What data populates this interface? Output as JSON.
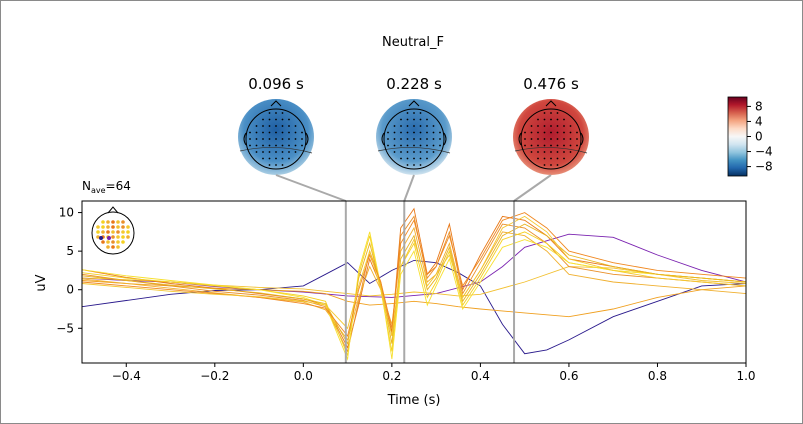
{
  "figure": {
    "title": "Neutral_F",
    "nave_label": "N",
    "nave_sub": "ave",
    "nave_value": "=64"
  },
  "chart_data": {
    "type": "line",
    "xlabel": "Time (s)",
    "ylabel": "uV",
    "xlim": [
      -0.5,
      1.0
    ],
    "ylim": [
      -9.5,
      11.5
    ],
    "xticks": [
      -0.4,
      -0.2,
      0.0,
      0.2,
      0.4,
      0.6,
      0.8,
      1.0
    ],
    "xtick_labels": [
      "−0.4",
      "−0.2",
      "0.0",
      "0.2",
      "0.4",
      "0.6",
      "0.8",
      "1.0"
    ],
    "yticks": [
      -5,
      0,
      5,
      10
    ],
    "ytick_labels": [
      "−5",
      "0",
      "5",
      "10"
    ],
    "grid": false,
    "markers": [
      0.096,
      0.228,
      0.476
    ],
    "marker_color": "#a9a9a9",
    "series": [
      {
        "color": "#2a1a8c",
        "x": [
          -0.5,
          -0.4,
          -0.3,
          -0.2,
          -0.1,
          0.0,
          0.05,
          0.1,
          0.15,
          0.2,
          0.25,
          0.3,
          0.35,
          0.4,
          0.45,
          0.5,
          0.55,
          0.6,
          0.7,
          0.8,
          0.9,
          1.0
        ],
        "y": [
          -2.2,
          -1.4,
          -0.6,
          -0.1,
          0.0,
          0.5,
          2.0,
          3.5,
          0.8,
          2.5,
          3.8,
          3.5,
          2.2,
          0.5,
          -4.5,
          -8.3,
          -7.8,
          -6.5,
          -3.5,
          -1.5,
          0.5,
          0.8
        ]
      },
      {
        "color": "#7a22b0",
        "x": [
          -0.5,
          -0.4,
          -0.3,
          -0.2,
          -0.1,
          0.0,
          0.1,
          0.2,
          0.3,
          0.4,
          0.45,
          0.5,
          0.6,
          0.7,
          0.8,
          0.9,
          1.0
        ],
        "y": [
          1.5,
          1.2,
          1.0,
          0.4,
          0.0,
          -0.3,
          -0.8,
          -1.0,
          -0.5,
          1.0,
          3.0,
          5.5,
          7.2,
          6.8,
          4.5,
          2.5,
          1.0
        ]
      },
      {
        "color": "#f0a020",
        "x": [
          -0.5,
          -0.4,
          -0.3,
          -0.2,
          -0.1,
          0.0,
          0.05,
          0.1,
          0.15,
          0.2,
          0.25,
          0.3,
          0.35,
          0.4,
          0.5,
          0.6,
          0.7,
          0.8,
          0.9,
          1.0
        ],
        "y": [
          1.2,
          0.8,
          0.5,
          0.2,
          0.0,
          -0.2,
          -0.5,
          -1.5,
          -2.0,
          -1.8,
          -1.5,
          -1.8,
          -2.2,
          -2.5,
          -3.0,
          -3.5,
          -2.5,
          -1.0,
          0.0,
          0.5
        ]
      },
      {
        "color": "#f2c030",
        "x": [
          -0.5,
          -0.4,
          -0.3,
          -0.2,
          -0.1,
          0.0,
          0.05,
          0.1,
          0.15,
          0.2,
          0.25,
          0.3,
          0.35,
          0.4,
          0.5,
          0.6,
          0.7,
          0.8,
          0.9,
          1.0
        ],
        "y": [
          1.5,
          1.3,
          1.0,
          0.6,
          0.3,
          0.1,
          -0.2,
          -0.5,
          -0.8,
          -0.6,
          -0.3,
          -0.5,
          -0.8,
          -0.6,
          1.0,
          3.0,
          2.8,
          2.0,
          1.2,
          0.8
        ]
      },
      {
        "color": "#e87818",
        "x": [
          -0.5,
          -0.4,
          -0.3,
          -0.2,
          -0.1,
          0.0,
          0.05,
          0.1,
          0.125,
          0.15,
          0.175,
          0.2,
          0.22,
          0.25,
          0.28,
          0.3,
          0.33,
          0.36,
          0.4,
          0.45,
          0.5,
          0.55,
          0.6,
          0.7,
          0.8,
          0.9,
          1.0
        ],
        "y": [
          2.6,
          1.6,
          0.8,
          0.2,
          -0.5,
          -1.2,
          -2.0,
          -7.5,
          -2.0,
          4.0,
          0.5,
          -5.5,
          8.0,
          10.5,
          2.0,
          3.5,
          8.5,
          0.0,
          4.5,
          9.5,
          9.0,
          7.0,
          4.0,
          3.0,
          2.0,
          1.5,
          1.0
        ]
      },
      {
        "color": "#e9902a",
        "x": [
          -0.5,
          -0.4,
          -0.3,
          -0.2,
          -0.1,
          0.0,
          0.05,
          0.1,
          0.125,
          0.15,
          0.175,
          0.2,
          0.22,
          0.25,
          0.28,
          0.3,
          0.33,
          0.36,
          0.4,
          0.45,
          0.5,
          0.55,
          0.6,
          0.7,
          0.8,
          0.9,
          1.0
        ],
        "y": [
          2.0,
          1.2,
          0.5,
          -0.2,
          -0.7,
          -1.4,
          -2.2,
          -8.0,
          -1.5,
          5.0,
          1.0,
          -6.0,
          7.0,
          9.5,
          1.5,
          3.0,
          7.5,
          -0.5,
          3.5,
          8.5,
          8.0,
          6.0,
          3.0,
          2.0,
          1.5,
          1.0,
          0.5
        ]
      },
      {
        "color": "#f0b030",
        "x": [
          -0.5,
          -0.4,
          -0.3,
          -0.2,
          -0.1,
          0.0,
          0.05,
          0.1,
          0.125,
          0.15,
          0.175,
          0.2,
          0.22,
          0.25,
          0.28,
          0.3,
          0.33,
          0.36,
          0.4,
          0.45,
          0.5,
          0.55,
          0.6,
          0.7,
          0.8,
          0.9,
          1.0
        ],
        "y": [
          1.4,
          0.8,
          0.2,
          -0.4,
          -1.0,
          -1.6,
          -2.6,
          -6.5,
          -1.0,
          3.0,
          0.0,
          -4.5,
          5.0,
          8.0,
          1.0,
          2.0,
          6.0,
          -1.0,
          2.5,
          7.5,
          7.0,
          5.0,
          2.0,
          1.0,
          0.5,
          0.0,
          -0.5
        ]
      },
      {
        "color": "#f5d020",
        "x": [
          -0.5,
          -0.4,
          -0.3,
          -0.2,
          -0.1,
          0.0,
          0.05,
          0.1,
          0.125,
          0.15,
          0.175,
          0.2,
          0.22,
          0.25,
          0.28,
          0.3,
          0.33,
          0.36,
          0.4,
          0.45,
          0.5,
          0.55,
          0.6,
          0.7,
          0.8,
          0.9,
          1.0
        ],
        "y": [
          2.2,
          1.5,
          1.0,
          0.5,
          0.0,
          -0.8,
          -1.5,
          -8.5,
          2.0,
          7.0,
          0.0,
          -8.0,
          3.0,
          6.0,
          -1.0,
          1.0,
          5.0,
          -2.0,
          1.5,
          6.5,
          7.5,
          6.0,
          3.5,
          2.5,
          2.0,
          1.5,
          1.0
        ]
      },
      {
        "color": "#f7e030",
        "x": [
          -0.5,
          -0.4,
          -0.3,
          -0.2,
          -0.1,
          0.0,
          0.05,
          0.1,
          0.125,
          0.15,
          0.175,
          0.2,
          0.22,
          0.25,
          0.28,
          0.3,
          0.33,
          0.36,
          0.4,
          0.45,
          0.5,
          0.55,
          0.6,
          0.7,
          0.8,
          0.9,
          1.0
        ],
        "y": [
          2.6,
          1.8,
          1.2,
          0.6,
          0.0,
          -1.0,
          -2.0,
          -9.0,
          2.5,
          7.5,
          0.5,
          -9.0,
          2.0,
          5.0,
          -2.0,
          0.5,
          4.0,
          -2.5,
          1.0,
          5.5,
          6.5,
          5.5,
          3.5,
          2.5,
          2.0,
          1.5,
          1.0
        ]
      },
      {
        "color": "#e8b420",
        "x": [
          -0.5,
          -0.4,
          -0.3,
          -0.2,
          -0.1,
          0.0,
          0.05,
          0.1,
          0.125,
          0.15,
          0.175,
          0.2,
          0.22,
          0.25,
          0.28,
          0.3,
          0.33,
          0.36,
          0.4,
          0.45,
          0.5,
          0.55,
          0.6,
          0.7,
          0.8,
          0.9,
          1.0
        ],
        "y": [
          1.8,
          1.2,
          0.6,
          0.1,
          -0.4,
          -1.2,
          -1.8,
          -7.0,
          1.5,
          6.0,
          0.5,
          -7.0,
          4.0,
          7.0,
          0.0,
          1.5,
          5.5,
          -1.5,
          2.0,
          7.0,
          8.5,
          7.0,
          4.5,
          3.0,
          2.0,
          1.5,
          1.0
        ]
      },
      {
        "color": "#f08820",
        "x": [
          -0.5,
          -0.4,
          -0.3,
          -0.2,
          -0.1,
          0.0,
          0.05,
          0.1,
          0.125,
          0.15,
          0.175,
          0.2,
          0.22,
          0.25,
          0.28,
          0.3,
          0.33,
          0.36,
          0.4,
          0.45,
          0.5,
          0.55,
          0.6,
          0.7,
          0.8,
          0.9,
          1.0
        ],
        "y": [
          1.0,
          0.5,
          0.0,
          -0.5,
          -1.0,
          -1.8,
          -2.4,
          -6.0,
          0.0,
          4.5,
          1.0,
          -5.0,
          6.0,
          9.0,
          2.0,
          3.0,
          7.0,
          0.5,
          4.0,
          9.0,
          10.0,
          8.0,
          5.0,
          3.5,
          2.5,
          2.0,
          1.5
        ]
      },
      {
        "color": "#f4c830",
        "x": [
          -0.5,
          -0.4,
          -0.3,
          -0.2,
          -0.1,
          0.0,
          0.05,
          0.1,
          0.125,
          0.15,
          0.175,
          0.2,
          0.22,
          0.25,
          0.28,
          0.3,
          0.33,
          0.36,
          0.4,
          0.45,
          0.5,
          0.55,
          0.6,
          0.7,
          0.8,
          0.9,
          1.0
        ],
        "y": [
          0.8,
          0.3,
          -0.2,
          -0.6,
          -0.9,
          -1.5,
          -2.0,
          -5.0,
          0.5,
          5.0,
          0.0,
          -6.0,
          3.0,
          6.5,
          0.5,
          2.0,
          4.5,
          -1.0,
          2.5,
          8.0,
          9.5,
          7.5,
          4.0,
          2.5,
          1.5,
          1.0,
          0.5
        ]
      }
    ],
    "topomaps": [
      {
        "time_label": "0.096 s",
        "color": "#3f88c2"
      },
      {
        "time_label": "0.228 s",
        "color": "#3f88c2"
      },
      {
        "time_label": "0.476 s",
        "color": "#c9342f"
      }
    ],
    "colorbar": {
      "ticks": [
        8,
        4,
        0,
        -4,
        -8
      ],
      "tick_labels": [
        "8",
        "4",
        "0",
        "−4",
        "−8"
      ],
      "range": [
        -10.5,
        10.5
      ],
      "colors": [
        "#67001f",
        "#b2182b",
        "#d6604d",
        "#f4a582",
        "#fddbc7",
        "#f7f7f7",
        "#d1e5f0",
        "#92c5de",
        "#4393c3",
        "#2166ac",
        "#053061"
      ]
    }
  }
}
